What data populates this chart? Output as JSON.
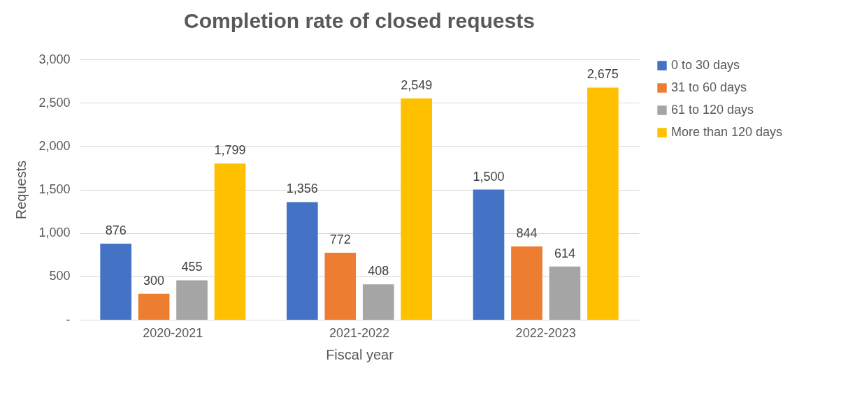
{
  "chart_data": {
    "type": "bar",
    "title": "Completion rate of closed requests",
    "xlabel": "Fiscal year",
    "ylabel": "Requests",
    "categories": [
      "2020-2021",
      "2021-2022",
      "2022-2023"
    ],
    "series": [
      {
        "name": "0 to 30 days",
        "color": "#4472c4",
        "values": [
          876,
          1356,
          1500
        ],
        "value_labels": [
          "876",
          "1,356",
          "1,500"
        ]
      },
      {
        "name": "31 to 60 days",
        "color": "#ed7d31",
        "values": [
          300,
          772,
          844
        ],
        "value_labels": [
          "300",
          "772",
          "844"
        ]
      },
      {
        "name": "61 to 120 days",
        "color": "#a5a5a5",
        "values": [
          455,
          408,
          614
        ],
        "value_labels": [
          "455",
          "408",
          "614"
        ]
      },
      {
        "name": "More than 120 days",
        "color": "#ffc000",
        "values": [
          1799,
          2549,
          2675
        ],
        "value_labels": [
          "1,799",
          "2,549",
          "2,675"
        ]
      }
    ],
    "ylim": [
      0,
      3000
    ],
    "yticks": [
      {
        "value": 0,
        "label": "-"
      },
      500,
      {
        "value": 1000,
        "label": "1,000"
      },
      {
        "value": 1500,
        "label": "1,500"
      },
      {
        "value": 2000,
        "label": "2,000"
      },
      {
        "value": 2500,
        "label": "2,500"
      },
      {
        "value": 3000,
        "label": "3,000"
      }
    ],
    "grid": "y",
    "legend": "right"
  }
}
